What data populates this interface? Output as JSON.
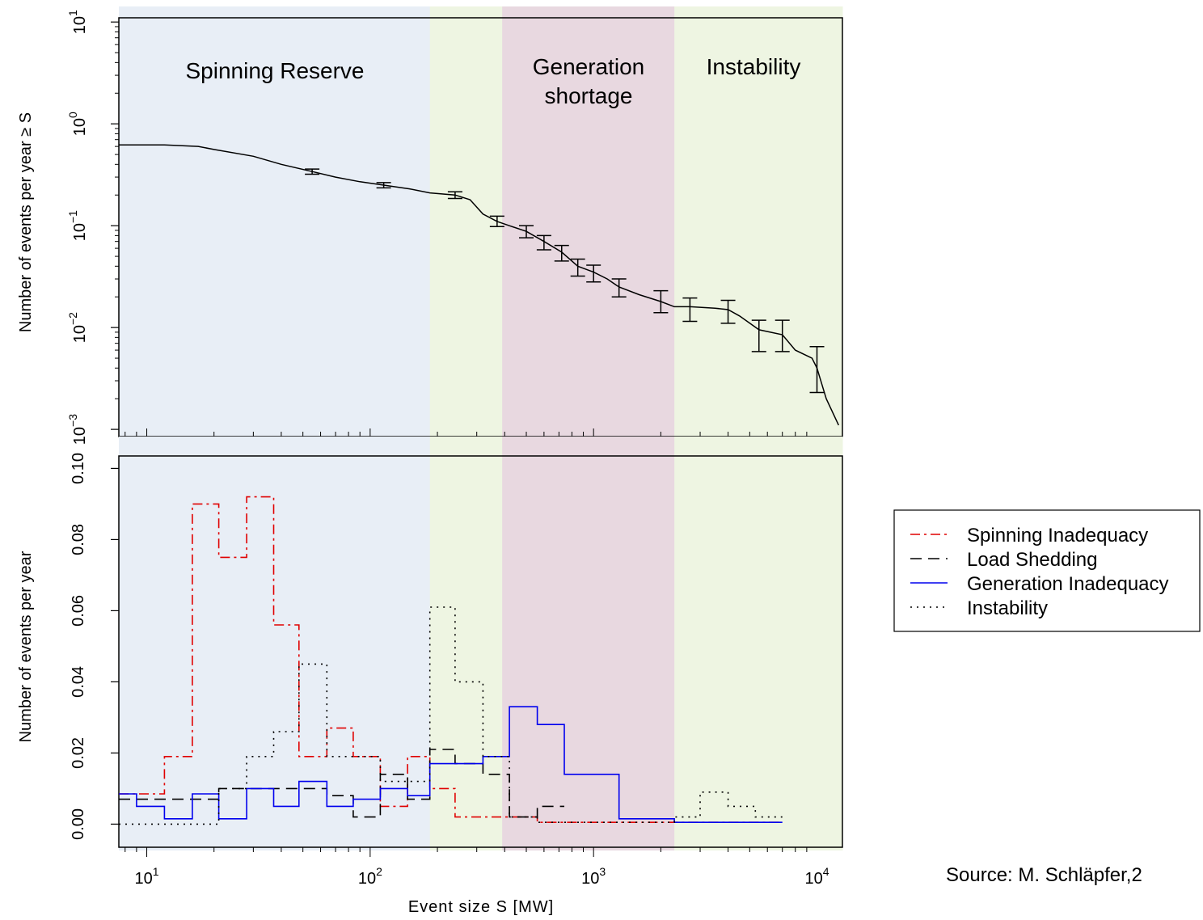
{
  "chart_data": [
    {
      "id": "ccdf",
      "type": "line",
      "xlabel": "",
      "ylabel": "Number of events per year ≥ S",
      "x_scale": "log",
      "y_scale": "log",
      "xlim": [
        7.5,
        13000
      ],
      "ylim": [
        0.00085,
        11
      ],
      "yticks": [
        0.001,
        0.01,
        0.1,
        1,
        10
      ],
      "ytick_labels": [
        {
          "base": "10",
          "exp": "−3"
        },
        {
          "base": "10",
          "exp": "−2"
        },
        {
          "base": "10",
          "exp": "−1"
        },
        {
          "base": "10",
          "exp": "0"
        },
        {
          "base": "10",
          "exp": "1"
        }
      ],
      "regions": [
        {
          "label": [
            "Spinning Reserve"
          ],
          "x0": 7.5,
          "x1": 185,
          "color": "#e8eef6"
        },
        {
          "label": [],
          "x0": 185,
          "x1": 390,
          "color": "#eef5e2"
        },
        {
          "label": [
            "Generation",
            "shortage"
          ],
          "x0": 390,
          "x1": 2300,
          "color": "#e8d8e0"
        },
        {
          "label": [
            "Instability"
          ],
          "x0": 2300,
          "x1": 13000,
          "color": "#eef5e2"
        }
      ],
      "series": [
        {
          "color": "#000000",
          "points": [
            [
              7.5,
              0.62
            ],
            [
              12,
              0.62
            ],
            [
              17,
              0.6
            ],
            [
              20,
              0.56
            ],
            [
              30,
              0.48
            ],
            [
              40,
              0.4
            ],
            [
              55,
              0.34
            ],
            [
              70,
              0.3
            ],
            [
              90,
              0.27
            ],
            [
              115,
              0.25
            ],
            [
              150,
              0.23
            ],
            [
              185,
              0.21
            ],
            [
              240,
              0.2
            ],
            [
              280,
              0.18
            ],
            [
              320,
              0.13
            ],
            [
              370,
              0.11
            ],
            [
              420,
              0.1
            ],
            [
              500,
              0.088
            ],
            [
              600,
              0.07
            ],
            [
              720,
              0.055
            ],
            [
              850,
              0.04
            ],
            [
              1000,
              0.035
            ],
            [
              1150,
              0.03
            ],
            [
              1300,
              0.025
            ],
            [
              1600,
              0.021
            ],
            [
              2000,
              0.018
            ],
            [
              2300,
              0.016
            ],
            [
              2700,
              0.016
            ],
            [
              3500,
              0.0155
            ],
            [
              4000,
              0.015
            ],
            [
              4500,
              0.013
            ],
            [
              5500,
              0.0095
            ],
            [
              7000,
              0.0085
            ],
            [
              8000,
              0.006
            ],
            [
              9500,
              0.005
            ],
            [
              10000,
              0.004
            ],
            [
              11000,
              0.002
            ],
            [
              12500,
              0.0011
            ]
          ]
        }
      ],
      "error_bars": [
        {
          "x": 55,
          "y": 0.34,
          "lo": 0.32,
          "hi": 0.36
        },
        {
          "x": 115,
          "y": 0.25,
          "lo": 0.235,
          "hi": 0.265
        },
        {
          "x": 240,
          "y": 0.2,
          "lo": 0.185,
          "hi": 0.215
        },
        {
          "x": 370,
          "y": 0.11,
          "lo": 0.098,
          "hi": 0.124
        },
        {
          "x": 500,
          "y": 0.088,
          "lo": 0.076,
          "hi": 0.1
        },
        {
          "x": 600,
          "y": 0.068,
          "lo": 0.058,
          "hi": 0.08
        },
        {
          "x": 720,
          "y": 0.054,
          "lo": 0.045,
          "hi": 0.064
        },
        {
          "x": 850,
          "y": 0.039,
          "lo": 0.032,
          "hi": 0.047
        },
        {
          "x": 1000,
          "y": 0.034,
          "lo": 0.028,
          "hi": 0.041
        },
        {
          "x": 1300,
          "y": 0.025,
          "lo": 0.02,
          "hi": 0.03
        },
        {
          "x": 2000,
          "y": 0.018,
          "lo": 0.014,
          "hi": 0.023
        },
        {
          "x": 2700,
          "y": 0.015,
          "lo": 0.0115,
          "hi": 0.0195
        },
        {
          "x": 4000,
          "y": 0.0145,
          "lo": 0.011,
          "hi": 0.0185
        },
        {
          "x": 5500,
          "y": 0.009,
          "lo": 0.0058,
          "hi": 0.0118
        },
        {
          "x": 7000,
          "y": 0.0085,
          "lo": 0.0058,
          "hi": 0.0118
        },
        {
          "x": 10000,
          "y": 0.0042,
          "lo": 0.0023,
          "hi": 0.0065
        }
      ]
    },
    {
      "id": "histogram",
      "type": "line",
      "step": true,
      "xlabel": "Event size S [MW]",
      "ylabel": "Number of events per year",
      "x_scale": "log",
      "xlim": [
        7.5,
        13000
      ],
      "ylim": [
        -0.0065,
        0.1035
      ],
      "yticks": [
        0,
        0.02,
        0.04,
        0.06,
        0.08,
        0.1
      ],
      "ytick_labels": [
        "0.00",
        "0.02",
        "0.04",
        "0.06",
        "0.08",
        "0.10"
      ],
      "xticks": [
        10,
        100,
        1000,
        10000
      ],
      "xtick_labels": [
        {
          "base": "10",
          "exp": "1"
        },
        {
          "base": "10",
          "exp": "2"
        },
        {
          "base": "10",
          "exp": "3"
        },
        {
          "base": "10",
          "exp": "4"
        }
      ],
      "regions": [
        {
          "x0": 7.5,
          "x1": 185,
          "color": "#e8eef6"
        },
        {
          "x0": 185,
          "x1": 390,
          "color": "#eef5e2"
        },
        {
          "x0": 390,
          "x1": 2300,
          "color": "#e8d8e0"
        },
        {
          "x0": 2300,
          "x1": 13000,
          "color": "#eef5e2"
        }
      ],
      "series": [
        {
          "name": "Spinning Inadequacy",
          "color": "#e00000",
          "dash": "12,5,3,5",
          "edges": [
            7.5,
            12,
            16,
            21,
            28,
            37,
            48,
            64,
            84,
            111,
            147,
            185,
            240,
            320,
            420,
            560,
            740,
            980,
            1300,
            1700,
            2300,
            3000,
            4000,
            5300,
            7000
          ],
          "values": [
            0.0085,
            0.019,
            0.09,
            0.075,
            0.092,
            0.056,
            0.019,
            0.027,
            0.019,
            0.005,
            0.019,
            0.01,
            0.002,
            0.002,
            0.002,
            0.0005,
            0.0005,
            0.0005,
            0.0005,
            0.0005,
            0.0005,
            0.0005,
            0.0005,
            0.0005
          ]
        },
        {
          "name": "Load Shedding",
          "color": "#000000",
          "dash": "14,8",
          "edges": [
            7.5,
            12,
            16,
            21,
            28,
            37,
            48,
            64,
            84,
            111,
            147,
            185,
            240,
            320,
            420,
            560,
            740
          ],
          "values": [
            0.007,
            0.007,
            0.007,
            0.01,
            0.01,
            0.01,
            0.01,
            0.008,
            0.002,
            0.014,
            0.007,
            0.021,
            0.017,
            0.014,
            0.002,
            0.005
          ]
        },
        {
          "name": "Generation Inadequacy",
          "color": "#0000ee",
          "dash": "",
          "edges": [
            7.5,
            9,
            12,
            16,
            21,
            28,
            37,
            48,
            64,
            84,
            111,
            147,
            185,
            320,
            420,
            560,
            740,
            1300,
            2300,
            3000,
            4000,
            5300,
            7000
          ],
          "values": [
            0.0085,
            0.005,
            0.0015,
            0.0085,
            0.0015,
            0.01,
            0.005,
            0.012,
            0.005,
            0.007,
            0.01,
            0.008,
            0.017,
            0.019,
            0.033,
            0.028,
            0.014,
            0.0015,
            0.0005,
            0.0005,
            0.0005,
            0.0005
          ]
        },
        {
          "name": "Instability",
          "color": "#000000",
          "dash": "2,6",
          "edges": [
            7.5,
            21,
            28,
            37,
            48,
            64,
            84,
            111,
            147,
            185,
            240,
            320,
            420,
            560,
            740,
            980,
            1300,
            1700,
            2300,
            3000,
            4000,
            5300,
            7000
          ],
          "values": [
            0.0,
            0.01,
            0.019,
            0.026,
            0.045,
            0.019,
            0.019,
            0.012,
            0.012,
            0.061,
            0.04,
            0.019,
            0.002,
            0.0005,
            0.0005,
            0.0005,
            0.0005,
            0.0005,
            0.002,
            0.009,
            0.005,
            0.002
          ]
        }
      ]
    }
  ],
  "legend": {
    "placement": "right",
    "entries": [
      {
        "label": "Spinning Inadequacy",
        "color": "#e00000",
        "dash": "12,5,3,5"
      },
      {
        "label": "Load Shedding",
        "color": "#000000",
        "dash": "14,8"
      },
      {
        "label": "Generation Inadequacy",
        "color": "#0000ee",
        "dash": ""
      },
      {
        "label": "Instability",
        "color": "#000000",
        "dash": "2,6"
      }
    ]
  },
  "source": "Source: M. Schläpfer,2"
}
